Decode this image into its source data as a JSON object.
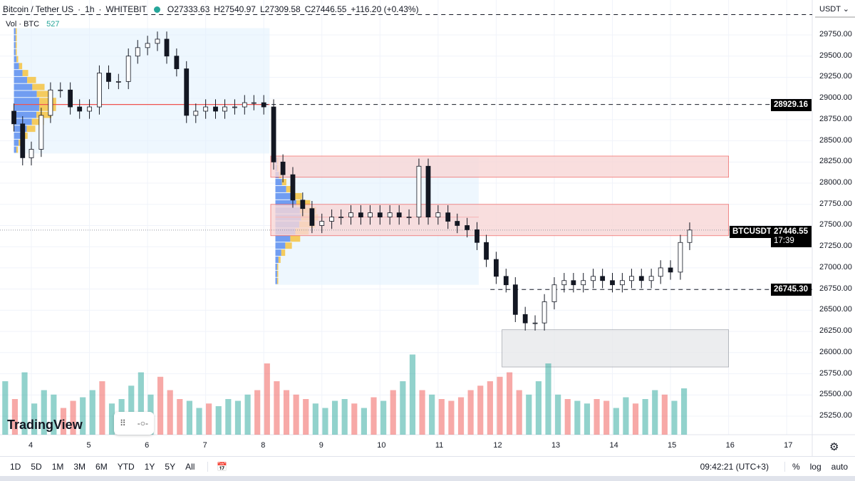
{
  "header": {
    "title": "Bitcoin / Tether US",
    "interval": "1h",
    "exchange": "WHITEBIT",
    "open": "O27333.63",
    "high": "H27540.97",
    "low": "L27309.58",
    "close": "C27446.55",
    "change": "+116.20 (+0.43%)"
  },
  "volume": {
    "label": "Vol · BTC",
    "value": "527"
  },
  "price_axis": {
    "currency": "USDT",
    "ticks": [
      "29750.00",
      "29500.00",
      "29250.00",
      "29000.00",
      "28750.00",
      "28500.00",
      "28250.00",
      "28000.00",
      "27750.00",
      "27500.00",
      "27250.00",
      "27000.00",
      "26750.00",
      "26500.00",
      "26250.00",
      "26000.00",
      "25750.00",
      "25500.00",
      "25250.00"
    ]
  },
  "tags": {
    "symbol": "BTCUSDT",
    "last_price": "27446.55",
    "countdown": "17:39",
    "level1": "28929.16",
    "level2": "26745.30"
  },
  "time_axis": {
    "ticks": [
      "4",
      "5",
      "6",
      "7",
      "8",
      "9",
      "10",
      "11",
      "12",
      "13",
      "14",
      "15",
      "16",
      "17"
    ]
  },
  "bottom": {
    "ranges": [
      "1D",
      "5D",
      "1M",
      "3M",
      "6M",
      "YTD",
      "1Y",
      "5Y",
      "All"
    ],
    "time": "09:42:21 (UTC+3)",
    "pct": "%",
    "log": "log",
    "auto": "auto"
  },
  "logo": "TradingView",
  "colors": {
    "up": "#26a69a",
    "down": "#ef5350",
    "zone_red": "#f8d7d7",
    "zone_gray": "#e8e9ec",
    "profile_bg": "#e3f2fd"
  },
  "chart_data": {
    "type": "candlestick",
    "title": "Bitcoin / Tether US · 1h · WHITEBIT",
    "ylim": [
      25100,
      30000
    ],
    "xlim": [
      3.5,
      17.5
    ],
    "closes_4h": [
      [
        3.7,
        28700
      ],
      [
        3.85,
        28300
      ],
      [
        4.0,
        28400
      ],
      [
        4.17,
        28800
      ],
      [
        4.33,
        29100
      ],
      [
        4.5,
        29100
      ],
      [
        4.67,
        28900
      ],
      [
        4.83,
        28850
      ],
      [
        5.0,
        28900
      ],
      [
        5.17,
        29300
      ],
      [
        5.33,
        29200
      ],
      [
        5.5,
        29200
      ],
      [
        5.67,
        29500
      ],
      [
        5.83,
        29600
      ],
      [
        6.0,
        29650
      ],
      [
        6.17,
        29700
      ],
      [
        6.33,
        29500
      ],
      [
        6.5,
        29350
      ],
      [
        6.67,
        28800
      ],
      [
        6.83,
        28850
      ],
      [
        7.0,
        28900
      ],
      [
        7.17,
        28850
      ],
      [
        7.33,
        28900
      ],
      [
        7.5,
        28900
      ],
      [
        7.67,
        28950
      ],
      [
        7.83,
        28950
      ],
      [
        8.0,
        28900
      ],
      [
        8.17,
        28250
      ],
      [
        8.33,
        28100
      ],
      [
        8.5,
        27800
      ],
      [
        8.67,
        27700
      ],
      [
        8.83,
        27500
      ],
      [
        9.0,
        27550
      ],
      [
        9.17,
        27600
      ],
      [
        9.33,
        27600
      ],
      [
        9.5,
        27650
      ],
      [
        9.67,
        27600
      ],
      [
        9.83,
        27650
      ],
      [
        10.0,
        27600
      ],
      [
        10.17,
        27650
      ],
      [
        10.33,
        27600
      ],
      [
        10.5,
        27600
      ],
      [
        10.67,
        28200
      ],
      [
        10.83,
        27600
      ],
      [
        11.0,
        27650
      ],
      [
        11.17,
        27550
      ],
      [
        11.33,
        27500
      ],
      [
        11.5,
        27450
      ],
      [
        11.67,
        27300
      ],
      [
        11.83,
        27100
      ],
      [
        12.0,
        26900
      ],
      [
        12.17,
        26800
      ],
      [
        12.33,
        26450
      ],
      [
        12.5,
        26350
      ],
      [
        12.67,
        26350
      ],
      [
        12.83,
        26600
      ],
      [
        13.0,
        26800
      ],
      [
        13.17,
        26850
      ],
      [
        13.33,
        26800
      ],
      [
        13.5,
        26850
      ],
      [
        13.67,
        26900
      ],
      [
        13.83,
        26850
      ],
      [
        14.0,
        26800
      ],
      [
        14.17,
        26850
      ],
      [
        14.33,
        26900
      ],
      [
        14.5,
        26850
      ],
      [
        14.67,
        26900
      ],
      [
        14.83,
        27000
      ],
      [
        15.0,
        26950
      ],
      [
        15.17,
        27300
      ],
      [
        15.33,
        27446.55
      ]
    ],
    "volumes": [
      600,
      400,
      700,
      350,
      500,
      450,
      300,
      380,
      420,
      500,
      600,
      350,
      400,
      550,
      700,
      450,
      650,
      500,
      400,
      380,
      300,
      350,
      320,
      400,
      380,
      450,
      500,
      800,
      600,
      500,
      450,
      400,
      350,
      300,
      380,
      400,
      350,
      300,
      420,
      380,
      500,
      600,
      900,
      500,
      450,
      400,
      380,
      420,
      500,
      550,
      600,
      650,
      700,
      500,
      450,
      600,
      800,
      450,
      400,
      380,
      350,
      400,
      380,
      300,
      420,
      350,
      400,
      500,
      450,
      380,
      520
    ],
    "horizontal_levels": [
      {
        "price": 28929.16,
        "from": 8.0
      },
      {
        "price": 26745.3,
        "from": 11.9
      },
      {
        "price": 29990,
        "from": 3.5
      }
    ],
    "zones": [
      {
        "from": 8.12,
        "to": 16.0,
        "low": 28070,
        "high": 28320,
        "kind": "resistance"
      },
      {
        "from": 8.12,
        "to": 16.0,
        "low": 27380,
        "high": 27750,
        "kind": "resistance"
      },
      {
        "from": 12.1,
        "to": 16.0,
        "low": 25830,
        "high": 26270,
        "kind": "support"
      }
    ],
    "volume_profiles": [
      {
        "from": 3.7,
        "to": 8.1,
        "low": 28350,
        "high": 29830,
        "poc": 28929
      },
      {
        "from": 8.2,
        "to": 11.7,
        "low": 26800,
        "high": 28300,
        "poc": 27600
      }
    ]
  }
}
